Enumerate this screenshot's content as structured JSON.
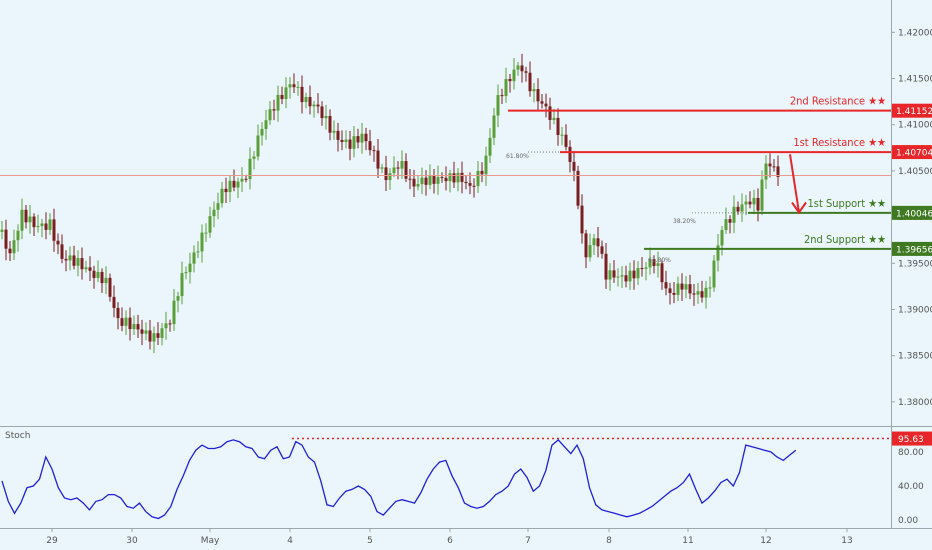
{
  "chart_data": [
    {
      "type": "candlestick",
      "price_axis": {
        "ticks": [
          "1.42000",
          "1.41500",
          "1.41000",
          "1.40500",
          "1.40000",
          "1.39500",
          "1.39000",
          "1.38500",
          "1.38000"
        ],
        "range": [
          1.3775,
          1.4235
        ]
      },
      "time_axis": {
        "ticks": [
          "29",
          "30",
          "May",
          "4",
          "5",
          "6",
          "7",
          "8",
          "11",
          "12",
          "13"
        ]
      },
      "current_price": 1.4045,
      "levels": [
        {
          "label": "2nd Resistance ★★",
          "value": "1.41152",
          "color": "#e8262a"
        },
        {
          "label": "1st Resistance ★★",
          "value": "1.40704",
          "color": "#e8262a"
        },
        {
          "label": "1st Support ★★",
          "value": "1.40046",
          "color": "#3f7a22"
        },
        {
          "label": "2nd Support ★★",
          "value": "1.39656",
          "color": "#3f7a22"
        }
      ],
      "fib_labels": [
        "61.80%",
        "38.20%",
        "61.80%"
      ],
      "projection": {
        "from": 1.4068,
        "to": 1.4005,
        "color": "#e8262a"
      },
      "candle_colors": {
        "up": "#5a9e3a",
        "down": "#7a1f1f"
      }
    },
    {
      "type": "line",
      "name": "Stoch",
      "y_axis": {
        "ticks": [
          "80.00",
          "40.00",
          "0.00"
        ],
        "range": [
          -8,
          108
        ]
      },
      "marker": {
        "value": "95.63",
        "color": "#e8262a"
      },
      "line_color": "#2020d8",
      "values": [
        46,
        22,
        8,
        20,
        38,
        40,
        48,
        74,
        60,
        38,
        26,
        24,
        26,
        20,
        12,
        22,
        24,
        30,
        30,
        26,
        16,
        14,
        20,
        10,
        4,
        2,
        6,
        16,
        36,
        52,
        70,
        82,
        88,
        84,
        84,
        86,
        92,
        94,
        92,
        86,
        84,
        74,
        72,
        82,
        86,
        72,
        74,
        92,
        88,
        74,
        68,
        46,
        18,
        16,
        26,
        34,
        36,
        40,
        36,
        28,
        10,
        6,
        14,
        22,
        24,
        22,
        20,
        32,
        48,
        60,
        68,
        70,
        52,
        38,
        20,
        16,
        14,
        16,
        22,
        30,
        34,
        40,
        54,
        60,
        50,
        34,
        40,
        58,
        88,
        94,
        86,
        78,
        88,
        72,
        38,
        18,
        12,
        10,
        8,
        6,
        4,
        6,
        8,
        12,
        16,
        22,
        28,
        34,
        38,
        44,
        54,
        36,
        20,
        26,
        34,
        44,
        48,
        40,
        56,
        88,
        86,
        84,
        82,
        80,
        74,
        70,
        76,
        82
      ]
    }
  ]
}
